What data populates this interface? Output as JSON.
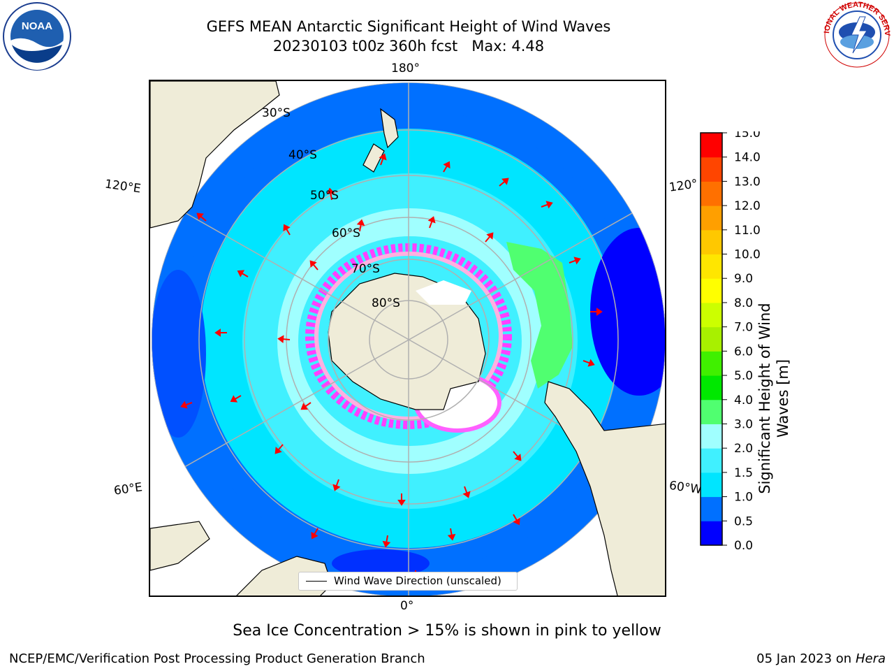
{
  "title": {
    "line1": "GEFS MEAN Antarctic Significant Height of Wind Waves",
    "line2": "20230103 t00z 360h fcst   Max: 4.48"
  },
  "map": {
    "projection": "south-polar-stereographic",
    "longitude_labels": {
      "top": "180°",
      "bottom": "0°",
      "upper_left": "120°E",
      "upper_right": "120°",
      "lower_left": "60°E",
      "lower_right": "60°W"
    },
    "latitude_labels": [
      "30°S",
      "40°S",
      "50°S",
      "60°S",
      "70°S",
      "80°S"
    ],
    "legend_label": "Wind Wave Direction (unscaled)",
    "arrow_color": "#ff0000",
    "land_color": "#efecd8",
    "ice_color_note": "pink to yellow"
  },
  "colorbar": {
    "label_line1": "Significant Height of Wind",
    "label_line2": "Waves [m]",
    "ticks": [
      "0.0",
      "0.5",
      "1.0",
      "1.5",
      "2.0",
      "3.0",
      "4.0",
      "5.0",
      "6.0",
      "7.0",
      "8.0",
      "9.0",
      "10.0",
      "11.0",
      "12.0",
      "13.0",
      "14.0",
      "15.0"
    ],
    "colors": [
      "#0000ff",
      "#0070ff",
      "#00e5ff",
      "#40f0ff",
      "#a0ffff",
      "#50ff70",
      "#00e800",
      "#40f000",
      "#a8f000",
      "#ccff00",
      "#ffff00",
      "#ffe600",
      "#ffc800",
      "#ff9f00",
      "#ff7000",
      "#ff4500",
      "#ff0000"
    ]
  },
  "notes": {
    "ice": "Sea Ice Concentration > 15% is shown in pink to yellow"
  },
  "footer": {
    "left": "NCEP/EMC/Verification Post Processing Product Generation Branch",
    "right_date": "05 Jan 2023 on ",
    "right_machine": "Hera"
  },
  "logos": {
    "left": "NOAA",
    "right": "NATIONAL WEATHER SERVICE"
  }
}
